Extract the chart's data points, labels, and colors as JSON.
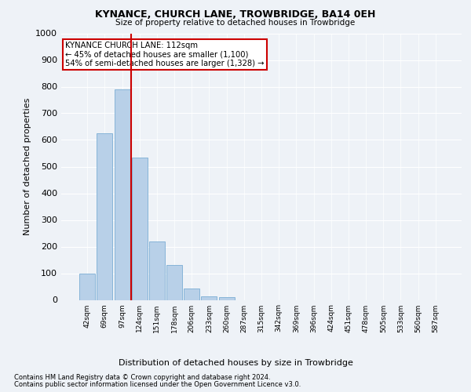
{
  "title": "KYNANCE, CHURCH LANE, TROWBRIDGE, BA14 0EH",
  "subtitle": "Size of property relative to detached houses in Trowbridge",
  "xlabel": "Distribution of detached houses by size in Trowbridge",
  "ylabel": "Number of detached properties",
  "bar_color": "#b8d0e8",
  "bar_edge_color": "#7aadd4",
  "background_color": "#eef2f7",
  "grid_color": "#ffffff",
  "categories": [
    "42sqm",
    "69sqm",
    "97sqm",
    "124sqm",
    "151sqm",
    "178sqm",
    "206sqm",
    "233sqm",
    "260sqm",
    "287sqm",
    "315sqm",
    "342sqm",
    "369sqm",
    "396sqm",
    "424sqm",
    "451sqm",
    "478sqm",
    "505sqm",
    "533sqm",
    "560sqm",
    "587sqm"
  ],
  "values": [
    100,
    625,
    790,
    535,
    220,
    132,
    43,
    14,
    10,
    0,
    0,
    0,
    0,
    0,
    0,
    0,
    0,
    0,
    0,
    0,
    0
  ],
  "ylim": [
    0,
    1000
  ],
  "yticks": [
    0,
    100,
    200,
    300,
    400,
    500,
    600,
    700,
    800,
    900,
    1000
  ],
  "property_line_color": "#cc0000",
  "annotation_text": "KYNANCE CHURCH LANE: 112sqm\n← 45% of detached houses are smaller (1,100)\n54% of semi-detached houses are larger (1,328) →",
  "annotation_box_color": "#ffffff",
  "annotation_box_edge_color": "#cc0000",
  "footer_line1": "Contains HM Land Registry data © Crown copyright and database right 2024.",
  "footer_line2": "Contains public sector information licensed under the Open Government Licence v3.0."
}
